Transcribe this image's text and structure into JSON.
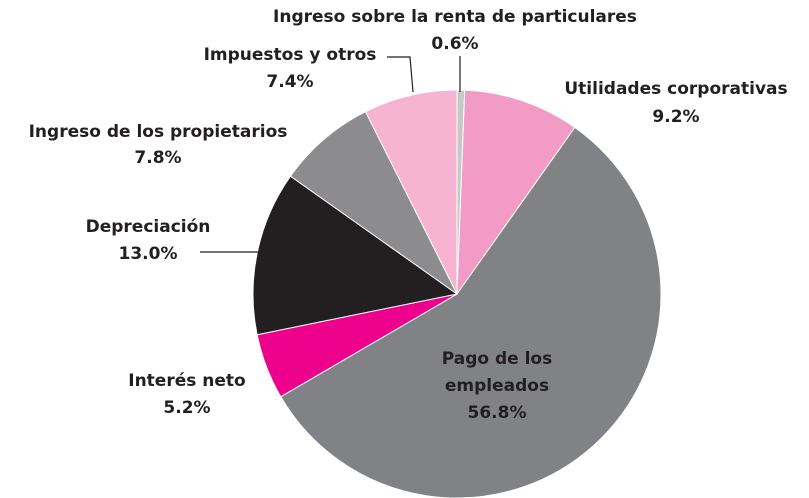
{
  "chart_data": {
    "type": "pie",
    "categories": [
      "Ingreso sobre la renta de particulares",
      "Utilidades corporativas",
      "Pago de los empleados",
      "Interés neto",
      "Depreciación",
      "Ingreso de los propietarios",
      "Impuestos y otros"
    ],
    "values": [
      0.6,
      9.2,
      56.8,
      5.2,
      13.0,
      7.8,
      7.4
    ],
    "value_labels": [
      "0.6%",
      "9.2%",
      "56.8%",
      "5.2%",
      "13.0%",
      "7.8%",
      "7.4%"
    ],
    "colors": [
      "#c8c8c8",
      "#f29bc4",
      "#818285",
      "#ec008c",
      "#231f20",
      "#8c8c8e",
      "#f6b4d2"
    ]
  }
}
